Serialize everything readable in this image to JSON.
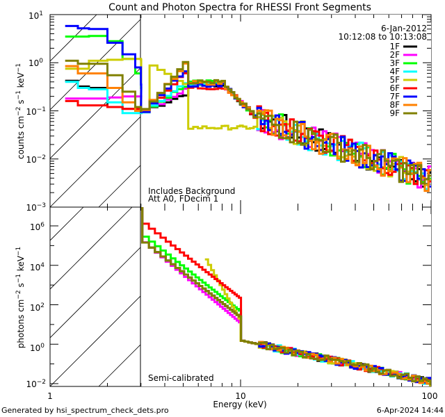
{
  "chart_data": [
    {
      "type": "line",
      "panel": "top",
      "title": "Count and Photon Spectra for RHESSI Front Segments",
      "xlabel": "Energy (keV)",
      "ylabel": "counts cm^-2 s^-1 keV^-1",
      "xscale": "log",
      "yscale": "log",
      "xlim": [
        1,
        100
      ],
      "ylim": [
        0.001,
        10
      ],
      "x_ticks": [
        "1",
        "10",
        "100"
      ],
      "y_ticks": [
        "10^-3",
        "10^-2",
        "10^-1",
        "10^0",
        "10^1"
      ],
      "hatched_region_keV": [
        1,
        3
      ],
      "annotations": [
        "Includes Background",
        "Att A0, FDecim 1"
      ],
      "date": "6-Jan-2012",
      "time_range": "10:12:08 to 10:13:08",
      "legend_position": "top-right",
      "series": [
        {
          "name": "1F",
          "color": "#000000",
          "low": [
            [
              1.2,
              0.42
            ],
            [
              1.4,
              0.32
            ],
            [
              1.6,
              0.3
            ],
            [
              2.0,
              0.12
            ],
            [
              2.4,
              0.11
            ],
            [
              3.0,
              0.1
            ]
          ]
        },
        {
          "name": "2F",
          "color": "#ff00ff",
          "low": [
            [
              1.2,
              0.18
            ],
            [
              1.6,
              0.18
            ],
            [
              2.0,
              0.19
            ],
            [
              2.4,
              0.2
            ],
            [
              3.0,
              0.2
            ]
          ]
        },
        {
          "name": "3F",
          "color": "#00ff00",
          "low": [
            [
              1.2,
              3.5
            ],
            [
              1.6,
              3.6
            ],
            [
              2.0,
              2.8
            ],
            [
              2.4,
              1.2
            ],
            [
              2.8,
              0.6
            ],
            [
              3.0,
              0.3
            ]
          ]
        },
        {
          "name": "4F",
          "color": "#00ffff",
          "low": [
            [
              1.2,
              0.4
            ],
            [
              1.4,
              0.3
            ],
            [
              1.6,
              0.28
            ],
            [
              2.0,
              0.15
            ],
            [
              2.4,
              0.09
            ],
            [
              3.0,
              0.09
            ]
          ]
        },
        {
          "name": "5F",
          "color": "#cccc00",
          "low": [
            [
              1.2,
              0.75
            ],
            [
              1.4,
              0.75
            ],
            [
              1.6,
              1.1
            ],
            [
              2.0,
              1.15
            ],
            [
              2.4,
              1.2
            ],
            [
              3.0,
              1.15
            ]
          ]
        },
        {
          "name": "6F",
          "color": "#ff0000",
          "low": [
            [
              1.2,
              0.16
            ],
            [
              1.4,
              0.13
            ],
            [
              1.6,
              0.13
            ],
            [
              2.0,
              0.12
            ],
            [
              2.4,
              0.11
            ],
            [
              3.0,
              0.1
            ]
          ]
        },
        {
          "name": "7F",
          "color": "#0000ff",
          "low": [
            [
              1.2,
              5.8
            ],
            [
              1.4,
              5.2
            ],
            [
              1.6,
              5.0
            ],
            [
              2.0,
              2.6
            ],
            [
              2.4,
              1.5
            ],
            [
              2.8,
              0.8
            ],
            [
              3.0,
              0.35
            ]
          ]
        },
        {
          "name": "8F",
          "color": "#ff8000",
          "low": [
            [
              1.2,
              0.85
            ],
            [
              1.4,
              0.6
            ],
            [
              1.6,
              0.6
            ],
            [
              2.0,
              0.3
            ],
            [
              2.4,
              0.15
            ],
            [
              2.8,
              0.1
            ],
            [
              3.0,
              0.1
            ]
          ]
        },
        {
          "name": "9F",
          "color": "#808000",
          "low": [
            [
              1.2,
              1.1
            ],
            [
              1.4,
              0.95
            ],
            [
              1.6,
              0.95
            ],
            [
              2.0,
              0.55
            ],
            [
              2.4,
              0.25
            ],
            [
              2.8,
              0.12
            ],
            [
              3.0,
              0.1
            ]
          ]
        }
      ]
    },
    {
      "type": "line",
      "panel": "bottom",
      "xlabel": "Energy (keV)",
      "ylabel": "photons cm^-2 s^-1 keV^-1",
      "xscale": "log",
      "yscale": "log",
      "xlim": [
        1,
        100
      ],
      "ylim": [
        0.008,
        9000000
      ],
      "x_ticks": [
        "1",
        "10",
        "100"
      ],
      "y_ticks": [
        "10^-2",
        "10^0",
        "10^2",
        "10^4",
        "10^6"
      ],
      "hatched_region_keV": [
        1,
        3
      ],
      "annotations": [
        "Semi-calibrated"
      ],
      "series_note": "Same nine detectors 1F-9F; steep power-law decline from ~1e6 at 3 keV to ~1e-2 at 100 keV; 5F starts at ~2e4 near 6.5 keV"
    }
  ],
  "footer": {
    "left": "Generated by hsi_spectrum_check_dets.pro",
    "right": "6-Apr-2024 14:44"
  }
}
